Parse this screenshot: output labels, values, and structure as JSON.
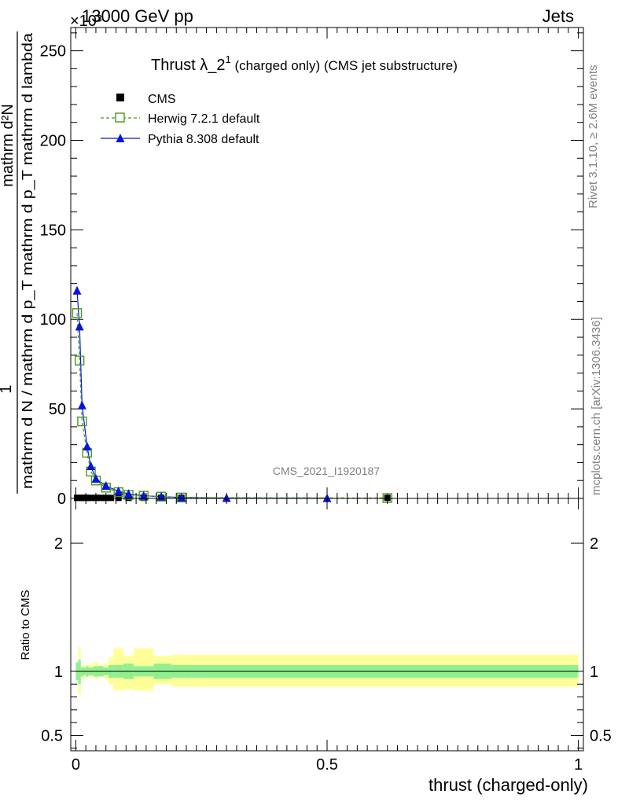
{
  "header": {
    "energy": "13000 GeV pp",
    "process": "Jets",
    "exponent": "×10³"
  },
  "side": {
    "rivet": "Rivet 3.1.10, ≥ 2.6M events",
    "mcplots": "mcplots.cern.ch [arXiv:1306.3436]"
  },
  "watermark": "CMS_2021_I1920187",
  "chart_data": [
    {
      "type": "scatter",
      "title": "Thrust λ_2¹ (charged only) (CMS jet substructure)",
      "title_main": "Thrust λ_2",
      "title_sup": "1",
      "title_rest": " (charged only) (CMS jet substructure)",
      "ylabel_numerator": "1",
      "ylabel_numerator_right": "mathrm d²N",
      "ylabel_denominator": "mathrm d N / mathrm d p_T mathrm d p_T mathrm d lambda",
      "ylim": [
        0,
        263
      ],
      "yticks": [
        0,
        50,
        100,
        150,
        200,
        250
      ],
      "ytick_labels": [
        "0",
        "50",
        "100",
        "150",
        "200",
        "250"
      ],
      "y_multiplier": "×10³",
      "xlim": [
        -0.01,
        1.01
      ],
      "legend_position": "top-left",
      "legend": [
        {
          "name": "CMS",
          "marker": "filled-square",
          "color": "#000000"
        },
        {
          "name": "Herwig 7.2.1 default",
          "marker": "open-square",
          "line": "dashed",
          "color": "#4a9a1c"
        },
        {
          "name": "Pythia 8.308 default",
          "marker": "filled-triangle",
          "line": "solid",
          "color": "#0a14d8"
        }
      ],
      "series": [
        {
          "name": "CMS",
          "x": [
            0.0025,
            0.0075,
            0.0125,
            0.0175,
            0.0225,
            0.03,
            0.04,
            0.05,
            0.06,
            0.07,
            0.085,
            0.105,
            0.135,
            0.17,
            0.21,
            0.62
          ],
          "y": [
            0.3,
            0.3,
            0.3,
            0.3,
            0.3,
            0.3,
            0.3,
            0.3,
            0.3,
            0.3,
            0.3,
            0.3,
            0.3,
            0.3,
            0.3,
            0.3
          ]
        },
        {
          "name": "Herwig 7.2.1 default",
          "x": [
            0.0025,
            0.0075,
            0.0125,
            0.0225,
            0.03,
            0.04,
            0.06,
            0.085,
            0.105,
            0.135,
            0.17,
            0.21,
            0.62
          ],
          "y": [
            103.5,
            77,
            43,
            25.5,
            15,
            10,
            6,
            3.5,
            2,
            1.5,
            1,
            0.5,
            0.2
          ]
        },
        {
          "name": "Pythia 8.308 default",
          "x": [
            0.0025,
            0.0075,
            0.0125,
            0.0225,
            0.03,
            0.04,
            0.06,
            0.085,
            0.105,
            0.135,
            0.17,
            0.21,
            0.3,
            0.5
          ],
          "y": [
            116,
            96,
            52,
            29,
            18,
            11,
            7,
            4,
            2.5,
            1.5,
            1,
            0.5,
            0.2,
            0.1
          ]
        }
      ]
    },
    {
      "type": "line",
      "ylabel": "Ratio to CMS",
      "xlabel": "thrust (charged-only)",
      "xlim": [
        -0.01,
        1.01
      ],
      "ylim": [
        0.38,
        2.35
      ],
      "xticks": [
        0,
        0.5,
        1
      ],
      "xtick_labels": [
        "0",
        "0.5",
        "1"
      ],
      "yticks": [
        0.5,
        1,
        2
      ],
      "ytick_labels": [
        "0.5",
        "1",
        "2"
      ],
      "reference_line": 1,
      "bands": {
        "edges": [
          0,
          0.005,
          0.01,
          0.015,
          0.02,
          0.025,
          0.035,
          0.045,
          0.055,
          0.065,
          0.075,
          0.095,
          0.115,
          0.155,
          0.19,
          0.23,
          1.0
        ],
        "stat_lo": [
          0.93,
          0.9,
          0.96,
          0.97,
          0.96,
          0.97,
          0.96,
          0.96,
          0.97,
          0.95,
          0.95,
          0.94,
          0.96,
          0.94,
          0.95,
          0.95
        ],
        "stat_hi": [
          1.07,
          1.09,
          1.03,
          1.03,
          1.04,
          1.03,
          1.04,
          1.04,
          1.03,
          1.05,
          1.05,
          1.06,
          1.04,
          1.06,
          1.05,
          1.05
        ],
        "total_lo": [
          0.95,
          0.82,
          0.95,
          0.96,
          0.95,
          0.96,
          0.94,
          0.96,
          0.94,
          0.9,
          0.85,
          0.86,
          0.85,
          0.9,
          0.88,
          0.88
        ],
        "total_hi": [
          1.05,
          1.19,
          1.04,
          1.04,
          1.06,
          1.05,
          1.07,
          1.05,
          1.06,
          1.11,
          1.18,
          1.12,
          1.18,
          1.12,
          1.13,
          1.13
        ]
      },
      "band_colors": {
        "stat": "#90f090",
        "total": "#ffff99"
      }
    }
  ]
}
